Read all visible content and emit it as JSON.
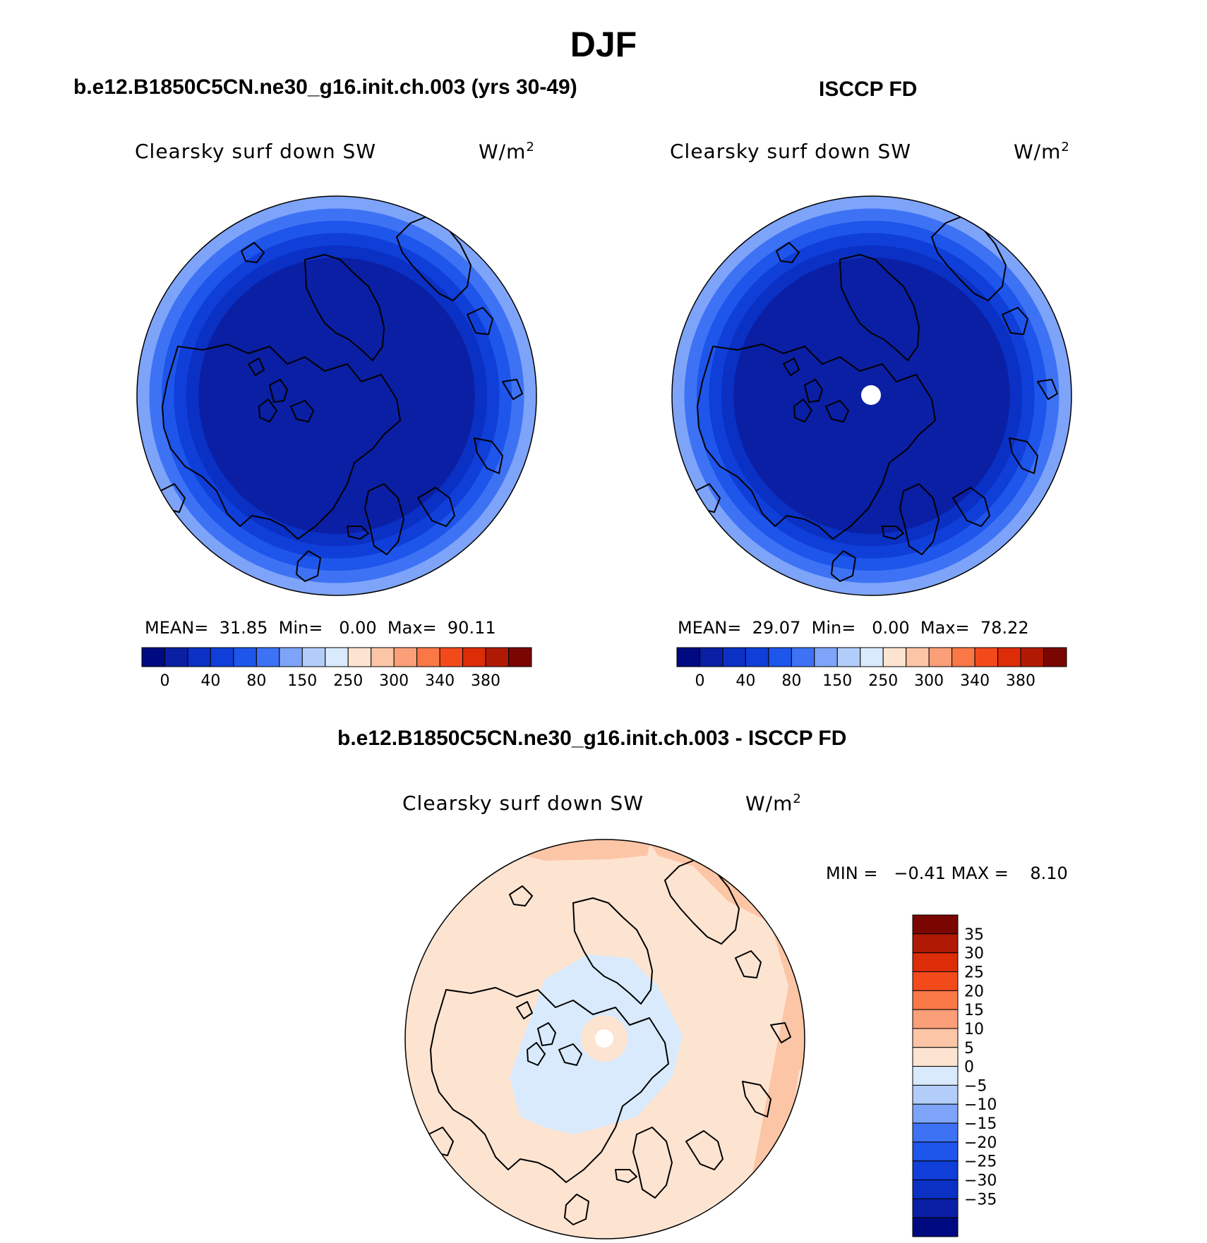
{
  "page": {
    "title": "DJF"
  },
  "panels": [
    {
      "case_title": "b.e12.B1850C5CN.ne30_g16.init.ch.003 (yrs 30-49)",
      "var_title": "Clearsky surf down SW",
      "units_base": "W/m",
      "units_exp": "2",
      "stats": {
        "mean_label": "MEAN=",
        "mean": "31.85",
        "min_label": "Min=",
        "min": "0.00",
        "max_label": "Max=",
        "max": "90.11"
      },
      "rings": [
        "#0a1fa3",
        "#0a1fa3",
        "#0a30c4",
        "#0f3fd8",
        "#1e55ea",
        "#3e72f5",
        "#7ea4f9"
      ],
      "missing_pole": false
    },
    {
      "case_title": "ISCCP FD",
      "var_title": "Clearsky surf down SW",
      "units_base": "W/m",
      "units_exp": "2",
      "stats": {
        "mean_label": "MEAN=",
        "mean": "29.07",
        "min_label": "Min=",
        "min": "0.00",
        "max_label": "Max=",
        "max": "78.22"
      },
      "rings": [
        "#0a1fa3",
        "#0a1fa3",
        "#0a30c4",
        "#0f3fd8",
        "#1e55ea",
        "#3e72f5",
        "#7ea4f9"
      ],
      "missing_pole": true
    }
  ],
  "diff_panel": {
    "case_title": "b.e12.B1850C5CN.ne30_g16.init.ch.003 - ISCCP FD",
    "var_title": "Clearsky surf down SW",
    "units_base": "W/m",
    "units_exp": "2",
    "stats": {
      "min_label": "MIN =",
      "min": "−0.41",
      "max_label": "MAX =",
      "max": "8.10"
    },
    "missing_pole": true
  },
  "colorbars": {
    "abs_colors": [
      "#000a80",
      "#0a1fa3",
      "#0a30c4",
      "#0f3fd8",
      "#1e55ea",
      "#3e72f5",
      "#7ea4f9",
      "#b3cdfb",
      "#d9eafd",
      "#fde4d1",
      "#fcc5a6",
      "#fb9f79",
      "#f97846",
      "#f34a1c",
      "#dc2c08",
      "#b01a04",
      "#7a0602"
    ],
    "abs_ticks": [
      "0",
      "40",
      "80",
      "150",
      "250",
      "300",
      "340",
      "380"
    ],
    "diff_colors": [
      "#000a80",
      "#0a1fa3",
      "#0a30c4",
      "#0f3fd8",
      "#1e55ea",
      "#3e72f5",
      "#7ea4f9",
      "#b3cdfb",
      "#d9eafd",
      "#fde4d1",
      "#fcc5a6",
      "#fb9f79",
      "#f97846",
      "#f34a1c",
      "#dc2c08",
      "#b01a04",
      "#7a0602"
    ],
    "diff_ticks": [
      "35",
      "30",
      "25",
      "20",
      "15",
      "10",
      "5",
      "0",
      "−5",
      "−10",
      "−15",
      "−20",
      "−25",
      "−30",
      "−35"
    ]
  },
  "map_colors": {
    "coast": "#000000",
    "diff_base": "#fde4d1",
    "diff_neg": "#d9eafd",
    "diff_pos": "#fcc5a6",
    "missing": "#ffffff"
  }
}
